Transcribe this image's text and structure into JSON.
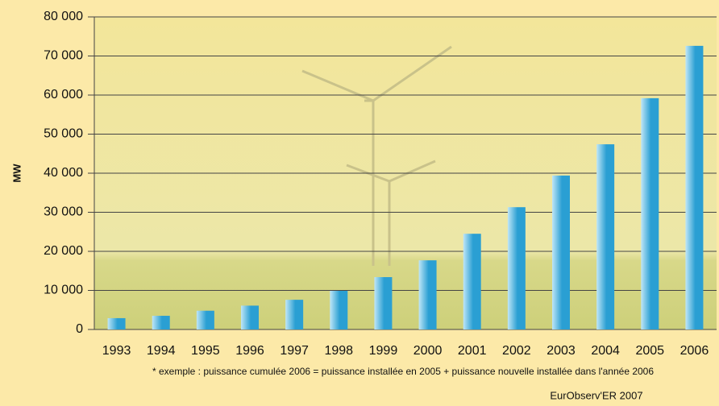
{
  "chart_data": {
    "type": "bar",
    "y_label": "MW",
    "categories": [
      "1993",
      "1994",
      "1995",
      "1996",
      "1997",
      "1998",
      "1999",
      "2000",
      "2001",
      "2002",
      "2003",
      "2004",
      "2005",
      "2006"
    ],
    "values": [
      2900,
      3500,
      4800,
      6100,
      7600,
      9900,
      13400,
      17700,
      24500,
      31300,
      39400,
      47400,
      59200,
      72600
    ],
    "color": "#2a9fd3",
    "ylim": [
      0,
      80000
    ],
    "yticks": [
      {
        "value": 0,
        "label": "0"
      },
      {
        "value": 10000,
        "label": "10 000"
      },
      {
        "value": 20000,
        "label": "20 000"
      },
      {
        "value": 30000,
        "label": "30 000"
      },
      {
        "value": 40000,
        "label": "40 000"
      },
      {
        "value": 50000,
        "label": "50 000"
      },
      {
        "value": 60000,
        "label": "60 000"
      },
      {
        "value": 70000,
        "label": "70 000"
      },
      {
        "value": 80000,
        "label": "80 000"
      }
    ],
    "grid": true,
    "note": "* exemple : puissance cumulée 2006 = puissance installée en 2005 + puissance nouvelle installée dans l'année 2006",
    "source": "EurObserv'ER 2007"
  }
}
